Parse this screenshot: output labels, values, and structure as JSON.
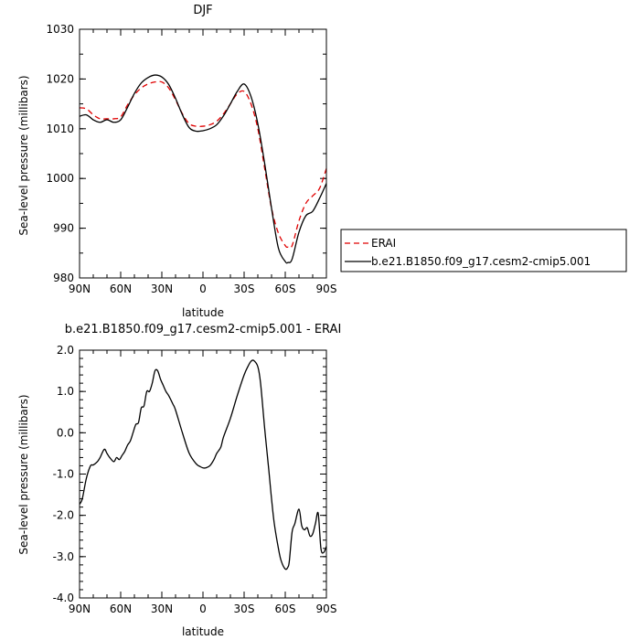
{
  "chart_data": [
    {
      "type": "line",
      "title": "DJF",
      "xlabel": "latitude",
      "ylabel": "Sea-level pressure (millibars)",
      "xlim": [
        90,
        -90
      ],
      "ylim": [
        980,
        1030
      ],
      "x_ticks": [
        90,
        60,
        30,
        0,
        -30,
        -60,
        -90
      ],
      "x_tick_labels": [
        "90N",
        "60N",
        "30N",
        "0",
        "30S",
        "60S",
        "90S"
      ],
      "y_ticks": [
        980,
        990,
        1000,
        1010,
        1020,
        1030
      ],
      "y_tick_labels": [
        "980",
        "990",
        "1000",
        "1010",
        "1020",
        "1030"
      ],
      "legend_position": "right",
      "series": [
        {
          "name": "ERAI",
          "color": "#e00000",
          "dash": "dashed",
          "x": [
            90,
            85,
            80,
            75,
            70,
            65,
            60,
            55,
            50,
            45,
            40,
            35,
            30,
            25,
            20,
            15,
            10,
            5,
            0,
            -5,
            -10,
            -15,
            -20,
            -25,
            -30,
            -35,
            -40,
            -45,
            -50,
            -55,
            -60,
            -62,
            -65,
            -70,
            -75,
            -80,
            -85,
            -90
          ],
          "y": [
            1014.2,
            1014,
            1012.8,
            1012,
            1012,
            1012,
            1012.4,
            1014.8,
            1016.8,
            1018.2,
            1019,
            1019.4,
            1019.4,
            1018.2,
            1015.8,
            1013,
            1011,
            1010.5,
            1010.5,
            1010.8,
            1011.5,
            1013,
            1015,
            1017,
            1017.5,
            1015,
            1010,
            1002,
            994,
            989,
            986.5,
            986.2,
            986.5,
            991.5,
            995,
            996.5,
            998,
            1002
          ]
        },
        {
          "name": "b.e21.B1850.f09_g17.cesm2-cmip5.001",
          "color": "#000000",
          "dash": "solid",
          "x": [
            90,
            85,
            80,
            75,
            70,
            65,
            60,
            55,
            50,
            45,
            40,
            35,
            30,
            25,
            20,
            15,
            10,
            5,
            0,
            -5,
            -10,
            -15,
            -20,
            -25,
            -30,
            -35,
            -40,
            -45,
            -50,
            -55,
            -60,
            -62,
            -65,
            -70,
            -75,
            -80,
            -85,
            -90
          ],
          "y": [
            1012.5,
            1012.8,
            1011.8,
            1011.3,
            1011.8,
            1011.3,
            1011.8,
            1014.3,
            1017.1,
            1019.2,
            1020.3,
            1020.8,
            1020.4,
            1018.9,
            1016.1,
            1012.8,
            1010.2,
            1009.5,
            1009.6,
            1010,
            1010.8,
            1012.6,
            1015,
            1017.5,
            1019,
            1016.5,
            1011,
            1003,
            994,
            986,
            983.3,
            983.1,
            983.8,
            989.2,
            992.5,
            993.4,
            996,
            999
          ]
        }
      ]
    },
    {
      "type": "line",
      "title": "b.e21.B1850.f09_g17.cesm2-cmip5.001 - ERAI",
      "xlabel": "latitude",
      "ylabel": "Sea-level pressure (millibars)",
      "xlim": [
        90,
        -90
      ],
      "ylim": [
        -4.0,
        2.0
      ],
      "x_ticks": [
        90,
        60,
        30,
        0,
        -30,
        -60,
        -90
      ],
      "x_tick_labels": [
        "90N",
        "60N",
        "30N",
        "0",
        "30S",
        "60S",
        "90S"
      ],
      "y_ticks": [
        -4,
        -3,
        -2,
        -1,
        0,
        1,
        2
      ],
      "y_tick_labels": [
        "-4.0",
        "-3.0",
        "-2.0",
        "-1.0",
        "0.0",
        "1.0",
        "2.0"
      ],
      "series": [
        {
          "name": "",
          "color": "#000000",
          "dash": "solid",
          "x": [
            90,
            88,
            85,
            82,
            80,
            77,
            75,
            72,
            70,
            68,
            65,
            63,
            61,
            59,
            57,
            55,
            53,
            51,
            49,
            47,
            45,
            43,
            41,
            39,
            37,
            35,
            33,
            31,
            29,
            27,
            25,
            22,
            20,
            15,
            10,
            5,
            2,
            0,
            -2,
            -5,
            -8,
            -10,
            -13,
            -15,
            -20,
            -25,
            -30,
            -33,
            -35,
            -37,
            -40,
            -42,
            -45,
            -48,
            -50,
            -52,
            -55,
            -57,
            -60,
            -62,
            -63,
            -65,
            -67,
            -70,
            -72,
            -74,
            -76,
            -78,
            -80,
            -82,
            -84,
            -86,
            -88,
            -90
          ],
          "y": [
            -1.73,
            -1.6,
            -1.1,
            -0.8,
            -0.78,
            -0.7,
            -0.6,
            -0.4,
            -0.5,
            -0.6,
            -0.7,
            -0.6,
            -0.65,
            -0.55,
            -0.45,
            -0.3,
            -0.2,
            0.0,
            0.2,
            0.25,
            0.6,
            0.65,
            1.0,
            1.0,
            1.2,
            1.5,
            1.5,
            1.3,
            1.15,
            1.0,
            0.9,
            0.7,
            0.55,
            0.0,
            -0.5,
            -0.75,
            -0.82,
            -0.85,
            -0.85,
            -0.8,
            -0.65,
            -0.5,
            -0.35,
            -0.1,
            0.35,
            0.9,
            1.4,
            1.62,
            1.73,
            1.75,
            1.6,
            1.2,
            0.1,
            -0.9,
            -1.6,
            -2.2,
            -2.8,
            -3.1,
            -3.3,
            -3.25,
            -3.1,
            -2.4,
            -2.2,
            -1.85,
            -2.25,
            -2.35,
            -2.3,
            -2.5,
            -2.45,
            -2.2,
            -1.95,
            -2.8,
            -2.9,
            -2.75
          ]
        }
      ]
    }
  ]
}
